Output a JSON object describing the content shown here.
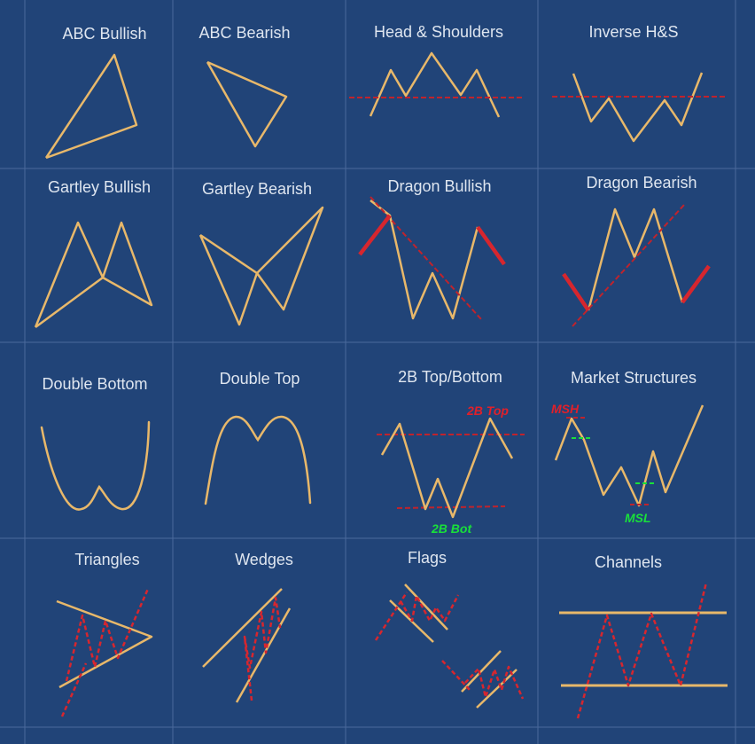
{
  "colors": {
    "background": "#214478",
    "grid": "#4a6a9c",
    "pattern_line": "#e8b86a",
    "red_line": "#d7262e",
    "dash_line": "#c0232c",
    "green": "#19e03a"
  },
  "tiles": [
    {
      "id": "abc-bullish",
      "title": "ABC Bullish"
    },
    {
      "id": "abc-bearish",
      "title": "ABC Bearish"
    },
    {
      "id": "head-shoulders",
      "title": "Head & Shoulders"
    },
    {
      "id": "inverse-hs",
      "title": "Inverse H&S"
    },
    {
      "id": "gartley-bullish",
      "title": "Gartley Bullish"
    },
    {
      "id": "gartley-bearish",
      "title": "Gartley Bearish"
    },
    {
      "id": "dragon-bullish",
      "title": "Dragon Bullish"
    },
    {
      "id": "dragon-bearish",
      "title": "Dragon Bearish"
    },
    {
      "id": "double-bottom",
      "title": "Double Bottom"
    },
    {
      "id": "double-top",
      "title": "Double Top"
    },
    {
      "id": "2b-top-bottom",
      "title": "2B Top/Bottom"
    },
    {
      "id": "market-structures",
      "title": "Market Structures"
    },
    {
      "id": "triangles",
      "title": "Triangles"
    },
    {
      "id": "wedges",
      "title": "Wedges"
    },
    {
      "id": "flags",
      "title": "Flags"
    },
    {
      "id": "channels",
      "title": "Channels"
    }
  ],
  "annotations": {
    "two_b_top": "2B Top",
    "two_b_bot": "2B Bot",
    "msh": "MSH",
    "msl": "MSL"
  }
}
